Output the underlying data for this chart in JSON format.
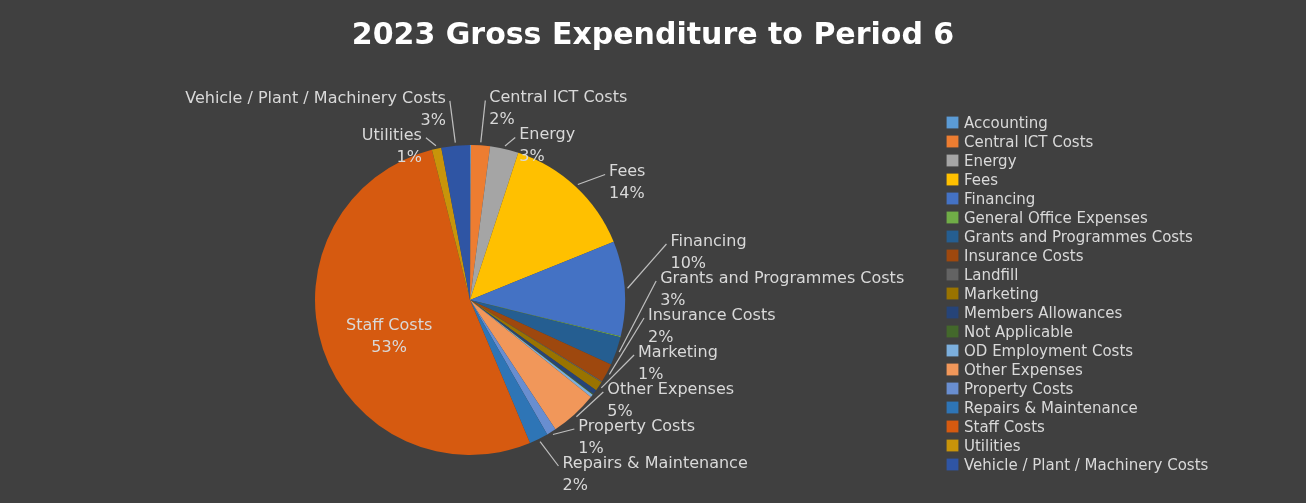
{
  "chart_data": {
    "type": "pie",
    "title": "2023 Gross Expenditure to Period 6",
    "categories": [
      "Accounting",
      "Central ICT Costs",
      "Energy",
      "Fees",
      "Financing",
      "General Office Expenses",
      "Grants and Programmes Costs",
      "Insurance Costs",
      "Landfill",
      "Marketing",
      "Members Allowances",
      "Not Applicable",
      "OD Employment Costs",
      "Other Expenses",
      "Property Costs",
      "Repairs & Maintenance",
      "Staff Costs",
      "Utilities",
      "Vehicle /  Plant / Machinery Costs"
    ],
    "values": [
      0.1,
      2,
      3,
      14,
      10,
      0.1,
      3,
      2,
      0.1,
      1,
      0.5,
      0.1,
      0.3,
      5,
      1,
      2,
      53,
      1,
      3
    ],
    "value_labels": [
      null,
      "2%",
      "3%",
      "14%",
      "10%",
      null,
      "3%",
      "2%",
      null,
      "1%",
      null,
      null,
      null,
      "5%",
      "1%",
      "2%",
      "53%",
      "1%",
      "3%"
    ],
    "colors": [
      "#5b9bd5",
      "#ed7d31",
      "#a5a5a5",
      "#ffc000",
      "#4472c4",
      "#70ad47",
      "#255e91",
      "#9e480e",
      "#636363",
      "#997300",
      "#264478",
      "#43682b",
      "#7cafdd",
      "#f1975a",
      "#698ed0",
      "#2e75b6",
      "#d65a10",
      "#c8940a",
      "#2f55a4"
    ],
    "legend": "right"
  }
}
